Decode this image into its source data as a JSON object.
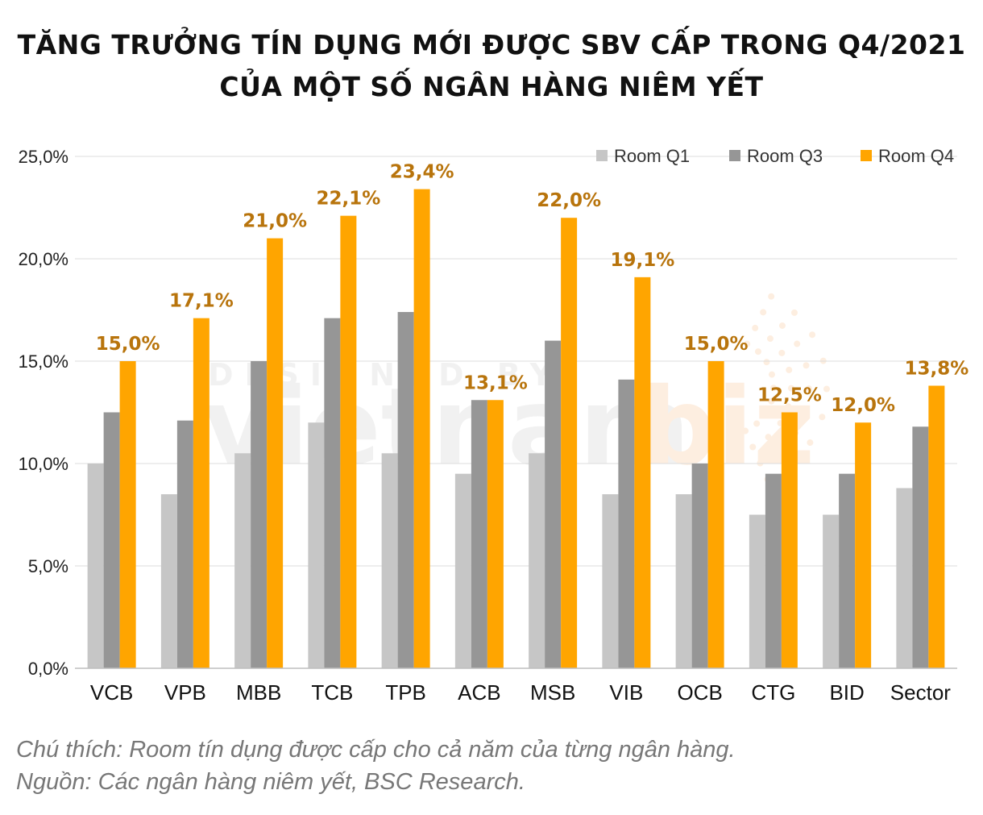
{
  "title": {
    "line1": "TĂNG TRƯỞNG TÍN DỤNG MỚI ĐƯỢC SBV CẤP TRONG Q4/2021",
    "line2": "CỦA MỘT SỐ NGÂN HÀNG NIÊM YẾT"
  },
  "watermark": {
    "top": "DESIGNED BY",
    "brand_a": "vietnam",
    "brand_b": "biz"
  },
  "notes": {
    "note": "Chú thích: Room tín dụng được cấp cho cả năm của từng ngân hàng.",
    "source": "Nguồn: Các ngân hàng niêm yết, BSC Research."
  },
  "chart_data": {
    "type": "bar",
    "categories": [
      "VCB",
      "VPB",
      "MBB",
      "TCB",
      "TPB",
      "ACB",
      "MSB",
      "VIB",
      "OCB",
      "CTG",
      "BID",
      "Sector"
    ],
    "series": [
      {
        "name": "Room Q1",
        "color": "#c6c6c6",
        "values": [
          10.0,
          8.5,
          10.5,
          12.0,
          10.5,
          9.5,
          10.5,
          8.5,
          8.5,
          7.5,
          7.5,
          8.8
        ]
      },
      {
        "name": "Room Q3",
        "color": "#969696",
        "values": [
          12.5,
          12.1,
          15.0,
          17.1,
          17.4,
          13.1,
          16.0,
          14.1,
          10.0,
          9.5,
          9.5,
          11.8
        ]
      },
      {
        "name": "Room Q4",
        "color": "#ffa500",
        "values": [
          15.0,
          17.1,
          21.0,
          22.1,
          23.4,
          13.1,
          22.0,
          19.1,
          15.0,
          12.5,
          12.0,
          13.8
        ]
      }
    ],
    "data_labels": [
      "15,0%",
      "17,1%",
      "21,0%",
      "22,1%",
      "23,4%",
      "13,1%",
      "22,0%",
      "19,1%",
      "15,0%",
      "12,5%",
      "12,0%",
      "13,8%"
    ],
    "data_label_color": "#b8740c",
    "y_ticks": [
      0,
      5,
      10,
      15,
      20,
      25
    ],
    "y_tick_labels": [
      "0,0%",
      "5,0%",
      "10,0%",
      "15,0%",
      "20,0%",
      "25,0%"
    ],
    "ylim": [
      0,
      25
    ],
    "grid": true,
    "legend_position": "top-right",
    "xlabel": "",
    "ylabel": ""
  }
}
